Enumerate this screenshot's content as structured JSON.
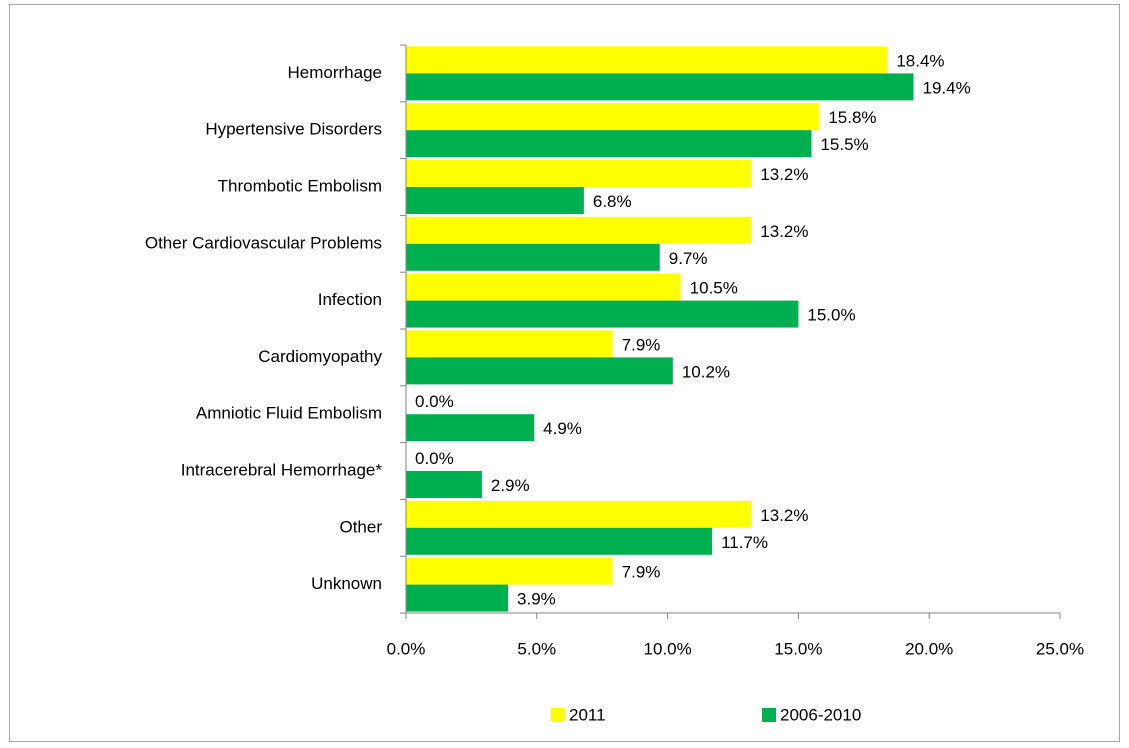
{
  "chart_data": {
    "type": "bar",
    "orientation": "horizontal",
    "categories": [
      "Hemorrhage",
      "Hypertensive Disorders",
      "Thrombotic Embolism",
      "Other Cardiovascular Problems",
      "Infection",
      "Cardiomyopathy",
      "Amniotic Fluid Embolism",
      "Intracerebral Hemorrhage*",
      "Other",
      "Unknown"
    ],
    "series": [
      {
        "name": "2011",
        "color": "#ffff00",
        "values": [
          18.4,
          15.8,
          13.2,
          13.2,
          10.5,
          7.9,
          0.0,
          0.0,
          13.2,
          7.9
        ],
        "value_labels": [
          "18.4%",
          "15.8%",
          "13.2%",
          "13.2%",
          "10.5%",
          "7.9%",
          "0.0%",
          "0.0%",
          "13.2%",
          "7.9%"
        ]
      },
      {
        "name": "2006-2010",
        "color": "#00b050",
        "values": [
          19.4,
          15.5,
          6.8,
          9.7,
          15.0,
          10.2,
          4.9,
          2.9,
          11.7,
          3.9
        ],
        "value_labels": [
          "19.4%",
          "15.5%",
          "6.8%",
          "9.7%",
          "15.0%",
          "10.2%",
          "4.9%",
          "2.9%",
          "11.7%",
          "3.9%"
        ]
      }
    ],
    "xlim": [
      0,
      25
    ],
    "xticks": [
      {
        "value": 0,
        "label": "0.0%"
      },
      {
        "value": 5,
        "label": "5.0%"
      },
      {
        "value": 10,
        "label": "10.0%"
      },
      {
        "value": 15,
        "label": "15.0%"
      },
      {
        "value": 20,
        "label": "20.0%"
      },
      {
        "value": 25,
        "label": "25.0%"
      }
    ],
    "grid": false,
    "legend": "bottom"
  }
}
